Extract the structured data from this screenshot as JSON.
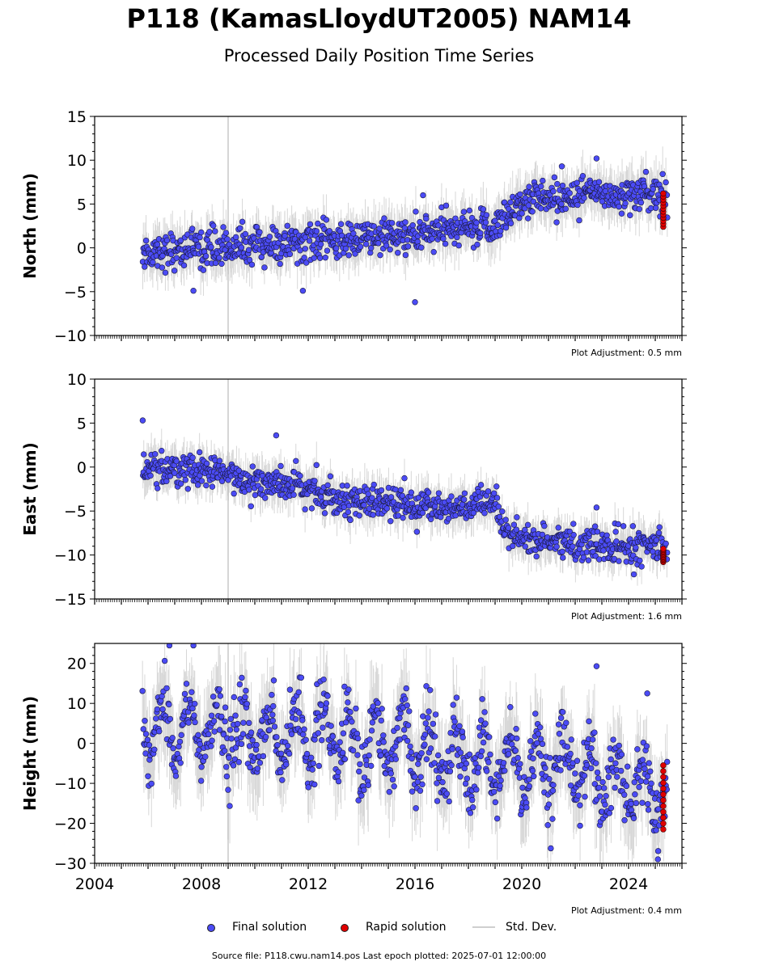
{
  "header": {
    "title": "P118 (KamasLloydUT2005) NAM14",
    "subtitle": "Processed Daily Position Time Series"
  },
  "footer": {
    "source": "Source file: P118.cwu.nam14.pos  Last epoch plotted: 2025-07-01 12:00:00"
  },
  "legend": {
    "final": "Final solution",
    "rapid": "Rapid solution",
    "std": "Std. Dev."
  },
  "colors": {
    "final": "#4b4bf5",
    "rapid": "#e00000",
    "std": "#b0b0b0",
    "marker": "#888888"
  },
  "chart_data": [
    {
      "type": "scatter",
      "ylabel": "North (mm)",
      "ylim": [
        -10,
        15
      ],
      "yticks": [
        -10,
        -5,
        0,
        5,
        10,
        15
      ],
      "xlim": [
        2004,
        2026
      ],
      "marker_year": 2009.0,
      "adjustment": "Plot Adjustment: 0.5 mm",
      "final_trend": [
        [
          2005.8,
          -0.5
        ],
        [
          2008.0,
          0.0
        ],
        [
          2012.0,
          0.5
        ],
        [
          2014.0,
          1.0
        ],
        [
          2016.0,
          1.5
        ],
        [
          2019.0,
          2.5
        ],
        [
          2019.5,
          4.0
        ],
        [
          2020.0,
          5.5
        ],
        [
          2022.0,
          6.0
        ],
        [
          2024.0,
          6.3
        ],
        [
          2025.5,
          6.0
        ]
      ],
      "scatter_sd": 1.5,
      "rapid_range": [
        2.4,
        6.2
      ],
      "outliers": [
        [
          2016.0,
          -6.2
        ],
        [
          2011.8,
          -4.9
        ],
        [
          2007.7,
          -4.9
        ],
        [
          2022.8,
          10.2
        ],
        [
          2021.5,
          9.3
        ],
        [
          2016.3,
          6.0
        ]
      ]
    },
    {
      "type": "scatter",
      "ylabel": "East (mm)",
      "ylim": [
        -15,
        10
      ],
      "yticks": [
        -15,
        -10,
        -5,
        0,
        5,
        10
      ],
      "xlim": [
        2004,
        2026
      ],
      "marker_year": 2009.0,
      "adjustment": "Plot Adjustment: 1.6 mm",
      "final_trend": [
        [
          2005.8,
          0.0
        ],
        [
          2008.0,
          -0.5
        ],
        [
          2010.0,
          -1.5
        ],
        [
          2012.0,
          -2.5
        ],
        [
          2013.0,
          -3.5
        ],
        [
          2016.0,
          -4.5
        ],
        [
          2019.1,
          -4.5
        ],
        [
          2019.3,
          -7.5
        ],
        [
          2021.0,
          -8.5
        ],
        [
          2023.0,
          -9.0
        ],
        [
          2025.5,
          -9.0
        ]
      ],
      "scatter_sd": 1.3,
      "rapid_range": [
        -10.8,
        -9.3
      ],
      "outliers": [
        [
          2005.8,
          5.3
        ],
        [
          2010.8,
          3.6
        ],
        [
          2024.2,
          -12.2
        ],
        [
          2022.8,
          -4.6
        ]
      ]
    },
    {
      "type": "scatter",
      "ylabel": "Height (mm)",
      "ylim": [
        -30,
        25
      ],
      "yticks": [
        -30,
        -20,
        -10,
        0,
        10,
        20
      ],
      "xlim": [
        2004,
        2026
      ],
      "xticks": [
        2004,
        2008,
        2012,
        2016,
        2020,
        2024
      ],
      "marker_year": 2009.0,
      "adjustment": "Plot Adjustment: 0.4 mm",
      "final_trend": [
        [
          2005.8,
          4.0
        ],
        [
          2010.0,
          2.0
        ],
        [
          2014.0,
          1.0
        ],
        [
          2016.0,
          0.0
        ],
        [
          2018.0,
          -5.0
        ],
        [
          2020.0,
          -7.0
        ],
        [
          2022.0,
          -6.0
        ],
        [
          2024.0,
          -10.0
        ],
        [
          2025.5,
          -15.0
        ]
      ],
      "scatter_sd": 6.0,
      "seasonal_amp": 7.0,
      "rapid_range": [
        -21.5,
        -5.5
      ],
      "outliers": [
        [
          2006.8,
          24.5
        ],
        [
          2007.7,
          24.5
        ],
        [
          2022.8,
          19.3
        ],
        [
          2024.7,
          12.5
        ],
        [
          2025.1,
          -29.0
        ]
      ]
    }
  ]
}
